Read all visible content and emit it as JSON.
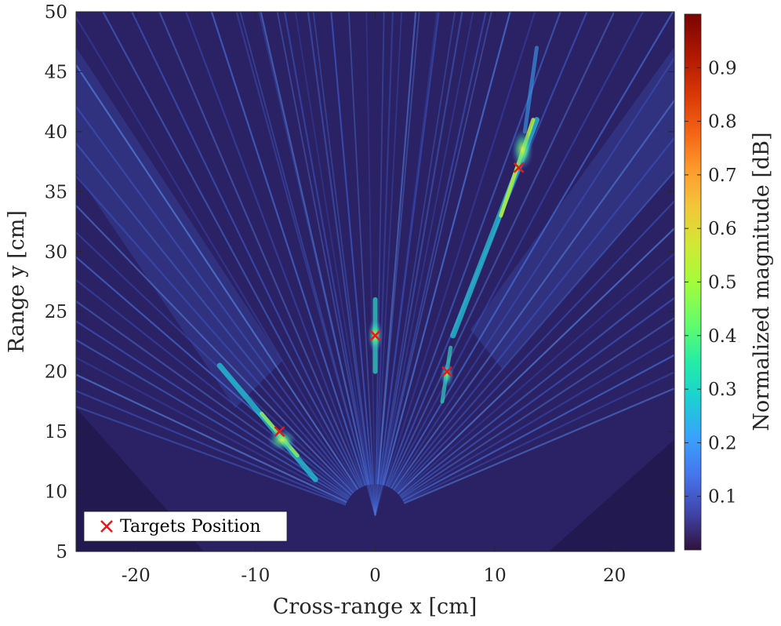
{
  "chart_data": {
    "type": "heatmap",
    "xlabel": "Cross-range x [cm]",
    "ylabel": "Range y [cm]",
    "colorbar_label": "Normalized magnitude [dB]",
    "xlim": [
      -25,
      25
    ],
    "ylim": [
      5,
      50
    ],
    "x_ticks": [
      -20,
      -10,
      0,
      10,
      20
    ],
    "y_ticks": [
      5,
      10,
      15,
      20,
      25,
      30,
      35,
      40,
      45,
      50
    ],
    "colorbar_ticks": [
      0.1,
      0.2,
      0.3,
      0.4,
      0.5,
      0.6,
      0.7,
      0.8,
      0.9
    ],
    "colorbar_range": [
      0,
      1
    ],
    "colormap": "turbo",
    "grid": false,
    "legend": {
      "position": "bottom-left",
      "entries": [
        "Targets Position"
      ]
    },
    "series": [
      {
        "name": "Targets Position",
        "marker": "x",
        "color": "#e41a1c",
        "points": [
          {
            "x": -8,
            "y": 15
          },
          {
            "x": 0,
            "y": 23
          },
          {
            "x": 6,
            "y": 20
          },
          {
            "x": 12,
            "y": 37
          }
        ]
      }
    ]
  }
}
